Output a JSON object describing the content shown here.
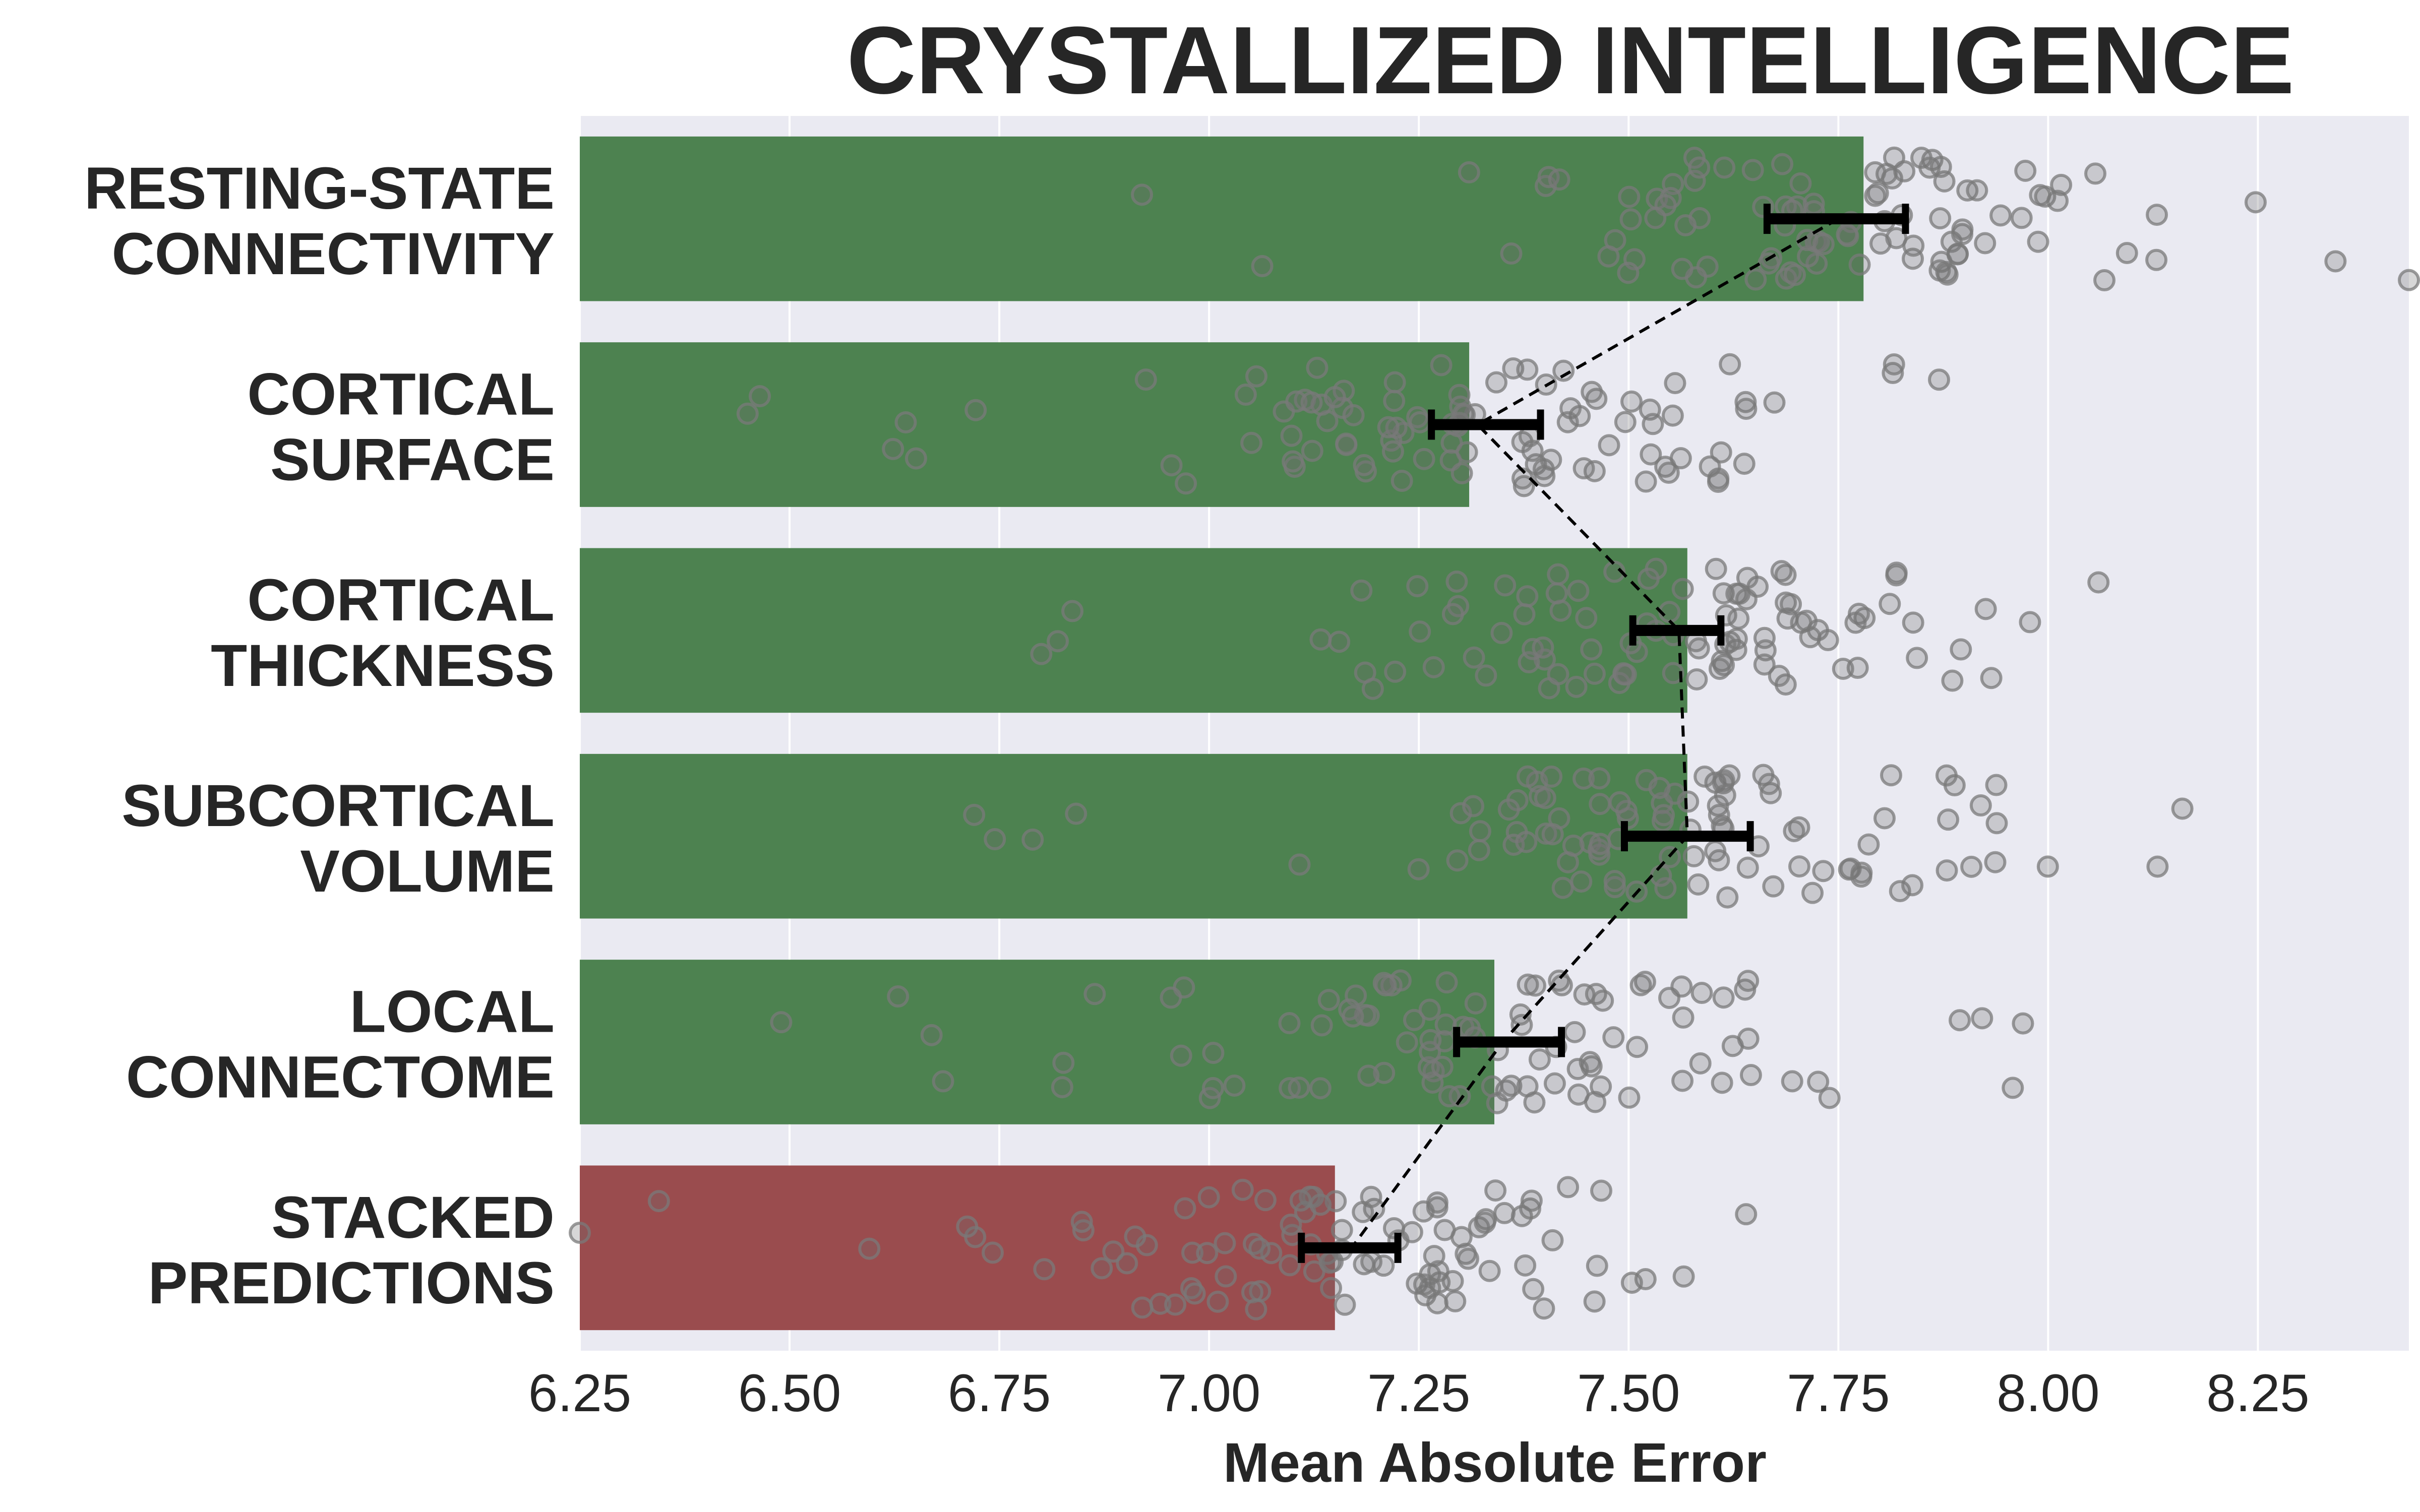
{
  "chart_data": {
    "type": "bar",
    "orientation": "horizontal",
    "title": "CRYSTALLIZED INTELLIGENCE",
    "xlabel": "Mean Absolute Error",
    "ylabel": "",
    "xlim": [
      6.25,
      8.43
    ],
    "xticks": [
      "6.25",
      "6.50",
      "6.75",
      "7.00",
      "7.25",
      "7.50",
      "7.75",
      "8.00",
      "8.25"
    ],
    "grid": true,
    "categories": [
      [
        "RESTING-STATE",
        "CONNECTIVITY"
      ],
      [
        "CORTICAL",
        "SURFACE"
      ],
      [
        "CORTICAL",
        "THICKNESS"
      ],
      [
        "SUBCORTICAL",
        "VOLUME"
      ],
      [
        "LOCAL",
        "CONNECTOME"
      ],
      [
        "STACKED",
        "PREDICTIONS"
      ]
    ],
    "values": [
      7.78,
      7.31,
      7.57,
      7.57,
      7.34,
      7.15
    ],
    "bar_colors": [
      "#4d8250",
      "#4d8250",
      "#4d8250",
      "#4d8250",
      "#4d8250",
      "#9a4c4e"
    ],
    "error_intervals": [
      [
        7.665,
        7.83
      ],
      [
        7.265,
        7.395
      ],
      [
        7.505,
        7.61
      ],
      [
        7.495,
        7.645
      ],
      [
        7.295,
        7.42
      ],
      [
        7.11,
        7.225
      ]
    ],
    "error_centers": [
      7.75,
      7.32,
      7.56,
      7.57,
      7.35,
      7.17
    ],
    "scatter_spread": [
      [
        6.92,
        8.43
      ],
      [
        6.45,
        7.87
      ],
      [
        6.8,
        8.06
      ],
      [
        6.72,
        8.16
      ],
      [
        6.49,
        7.97
      ],
      [
        6.25,
        7.64
      ]
    ],
    "connector_style": "dashed",
    "colors": {
      "plot_background": "#eaeaf2",
      "gridline": "#ffffff",
      "point_stroke": "#7a7a7a",
      "errorbar": "#000000",
      "text": "#262626"
    }
  }
}
